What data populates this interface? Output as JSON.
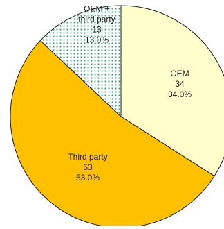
{
  "chart_data": {
    "type": "pie",
    "title": "",
    "start_angle_deg": 0,
    "direction": "clockwise",
    "slices": [
      {
        "label_lines": [
          "OEM"
        ],
        "value": 34,
        "percent": "34.0%",
        "color": "#FFFFCC",
        "pattern": "solid"
      },
      {
        "label_lines": [
          "Third party"
        ],
        "value": 53,
        "percent": "53.0%",
        "color": "#FFC000",
        "pattern": "solid"
      },
      {
        "label_lines": [
          "OEM +",
          "third party"
        ],
        "value": 13,
        "percent": "13.0%",
        "color": "#33A67A",
        "background": "#FFFFFF",
        "pattern": "dotted"
      }
    ],
    "edge_color": "#1a1a1a",
    "legend": "none"
  }
}
